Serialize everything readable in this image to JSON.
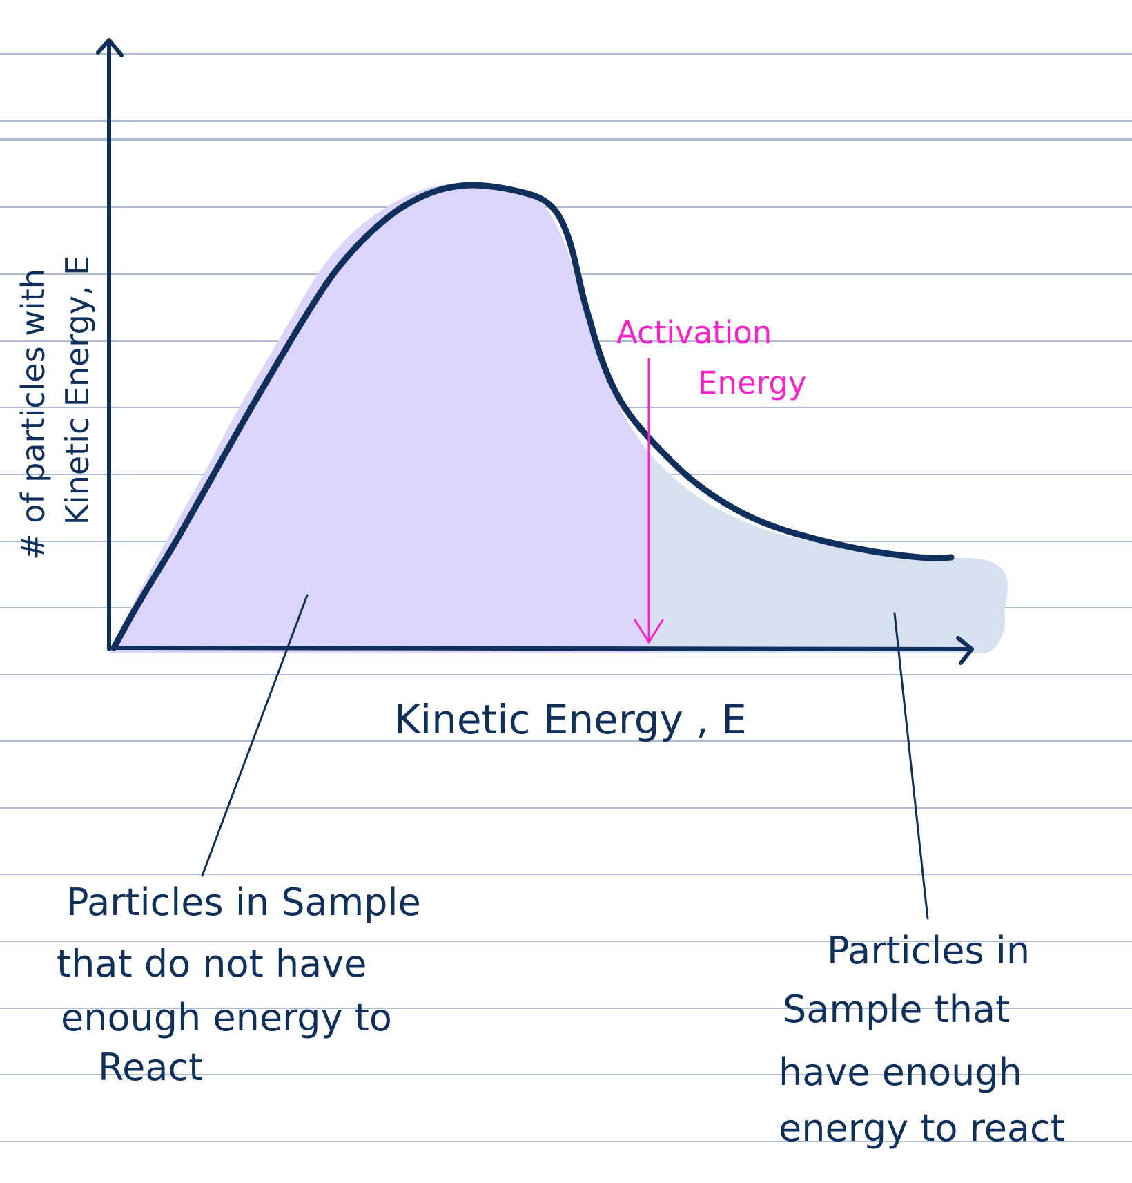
{
  "colors": {
    "paper_background": "#ffffff",
    "ruled_line": "#aebbd6",
    "ink_navy": "#0f2f5c",
    "fill_below_activation": "#dcd5fb",
    "fill_above_activation": "#d6e0ee",
    "activation_marker": "#ff1ec8"
  },
  "notebook": {
    "style": "ruled-lines"
  },
  "graph": {
    "y_axis_label": [
      "# of particles with",
      "Kinetic Energy, E"
    ],
    "x_axis_label": "Kinetic Energy , E",
    "activation_label": [
      "Activation",
      "Energy"
    ],
    "left_annotation": [
      "Particles in Sample",
      "that do not have",
      "enough energy to",
      "React"
    ],
    "right_annotation": [
      "Particles in",
      "Sample that",
      "have enough",
      "energy to react"
    ]
  }
}
